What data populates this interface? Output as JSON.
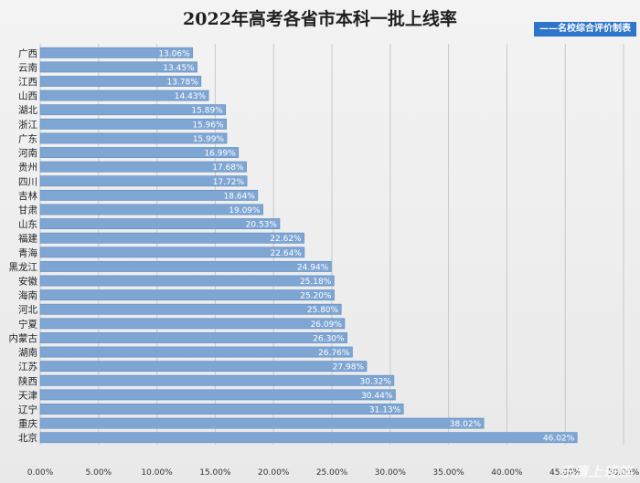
{
  "chart_data": {
    "type": "bar",
    "orientation": "horizontal",
    "title": "2022年高考各省市本科一批上线率",
    "credit": "——名校综合评价制表",
    "categories": [
      "广西",
      "云南",
      "江西",
      "山西",
      "湖北",
      "浙江",
      "广东",
      "河南",
      "贵州",
      "四川",
      "吉林",
      "甘肃",
      "山东",
      "福建",
      "青海",
      "黑龙江",
      "安徽",
      "海南",
      "河北",
      "宁夏",
      "内蒙古",
      "湖南",
      "江苏",
      "陕西",
      "天津",
      "辽宁",
      "重庆",
      "北京"
    ],
    "values": [
      13.06,
      13.45,
      13.78,
      14.43,
      15.89,
      15.96,
      15.99,
      16.99,
      17.68,
      17.72,
      18.64,
      19.09,
      20.53,
      22.62,
      22.64,
      24.94,
      25.18,
      25.2,
      25.8,
      26.09,
      26.3,
      26.76,
      27.98,
      30.32,
      30.44,
      31.13,
      38.02,
      46.02
    ],
    "value_labels": [
      "13.06%",
      "13.45%",
      "13.78%",
      "14.43%",
      "15.89%",
      "15.96%",
      "15.99%",
      "16.99%",
      "17.68%",
      "17.72%",
      "18.64%",
      "19.09%",
      "20.53%",
      "22.62%",
      "22.64%",
      "24.94%",
      "25.18%",
      "25.20%",
      "25.80%",
      "26.09%",
      "26.30%",
      "26.76%",
      "27.98%",
      "30.32%",
      "30.44%",
      "31.13%",
      "38.02%",
      "46.02%"
    ],
    "xlim": [
      0,
      50
    ],
    "xticks": [
      0,
      5,
      10,
      15,
      20,
      25,
      30,
      35,
      40,
      45,
      50
    ],
    "xtick_labels": [
      "0.00%",
      "5.00%",
      "10.00%",
      "15.00%",
      "20.00%",
      "25.00%",
      "30.00%",
      "35.00%",
      "40.00%",
      "45.00%",
      "50.00%"
    ],
    "grid": true,
    "bar_color": "#7fa6d3",
    "bar_edge_color": "#5b8bc2",
    "grid_color": "#c8c8c8"
  },
  "watermark": "乐清上班族"
}
